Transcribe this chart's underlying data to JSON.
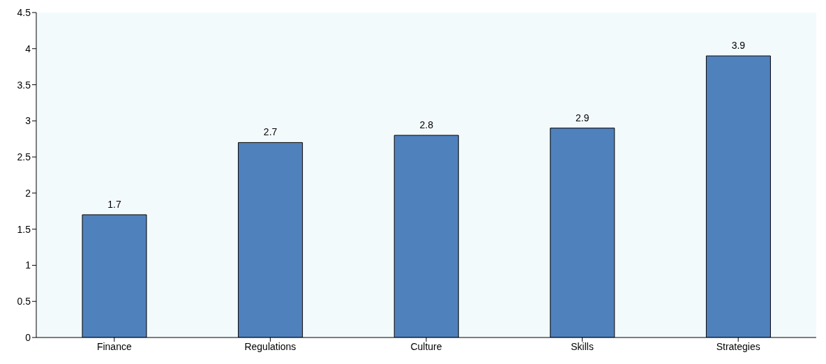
{
  "chart_data": {
    "type": "bar",
    "categories": [
      "Finance",
      "Regulations",
      "Culture",
      "Skills",
      "Strategies"
    ],
    "values": [
      1.7,
      2.7,
      2.8,
      2.9,
      3.9
    ],
    "color": "#4f81bd",
    "ylim": [
      0,
      4.5
    ],
    "yticks": [
      0,
      0.5,
      1,
      1.5,
      2,
      2.5,
      3,
      3.5,
      4,
      4.5
    ],
    "data_labels": true,
    "grid": false
  }
}
